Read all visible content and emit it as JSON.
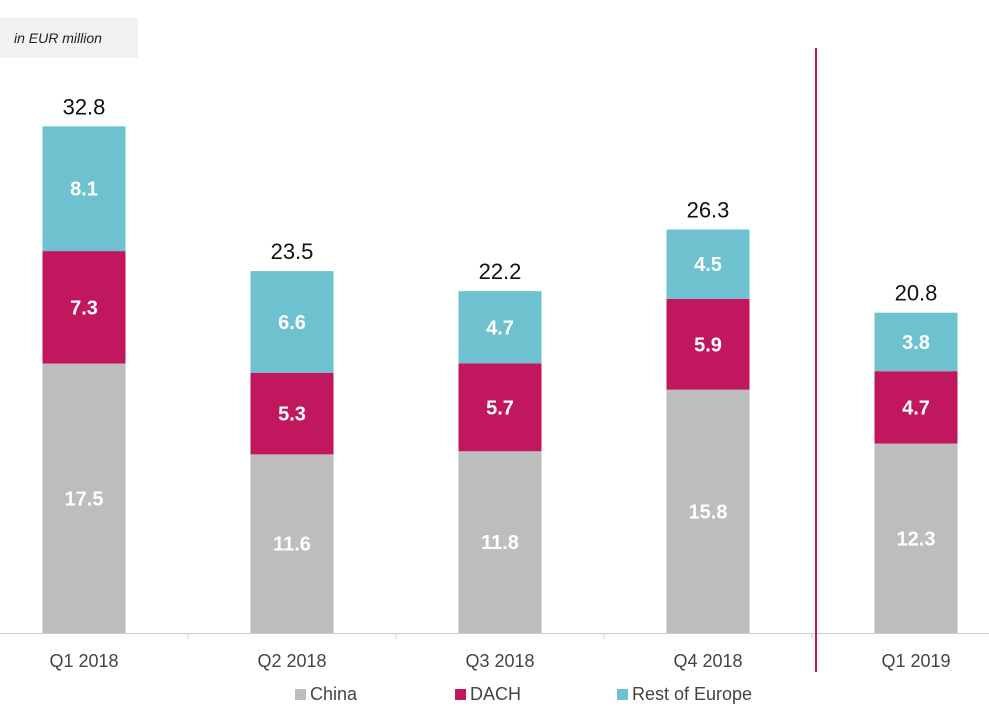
{
  "unit_label": "in EUR million",
  "colors": {
    "China": "#bdbdbd",
    "DACH": "#c1175f",
    "Rest of Europe": "#6ec1cf",
    "divider": "#c1175f",
    "axis": "#cccccc"
  },
  "chart_data": {
    "type": "bar",
    "stacked": true,
    "title": "",
    "ylabel": "in EUR million",
    "xlabel": "",
    "categories": [
      "Q1 2018",
      "Q2 2018",
      "Q3 2018",
      "Q4 2018",
      "Q1 2019"
    ],
    "series": [
      {
        "name": "China",
        "values": [
          17.5,
          11.6,
          11.8,
          15.8,
          12.3
        ]
      },
      {
        "name": "DACH",
        "values": [
          7.3,
          5.3,
          5.7,
          5.9,
          4.7
        ]
      },
      {
        "name": "Rest of Europe",
        "values": [
          8.1,
          6.6,
          4.7,
          4.5,
          3.8
        ]
      }
    ],
    "totals": [
      "32.8",
      "23.5",
      "22.2",
      "26.3",
      "20.8"
    ],
    "segment_labels": [
      [
        "17.5",
        "11.6",
        "11.8",
        "15.8",
        "12.3"
      ],
      [
        "7.3",
        "5.3",
        "5.7",
        "5.9",
        "4.7"
      ],
      [
        "8.1",
        "6.6",
        "4.7",
        "4.5",
        "3.8"
      ]
    ],
    "divider_after_category": "Q4 2018",
    "legend_position": "bottom"
  }
}
